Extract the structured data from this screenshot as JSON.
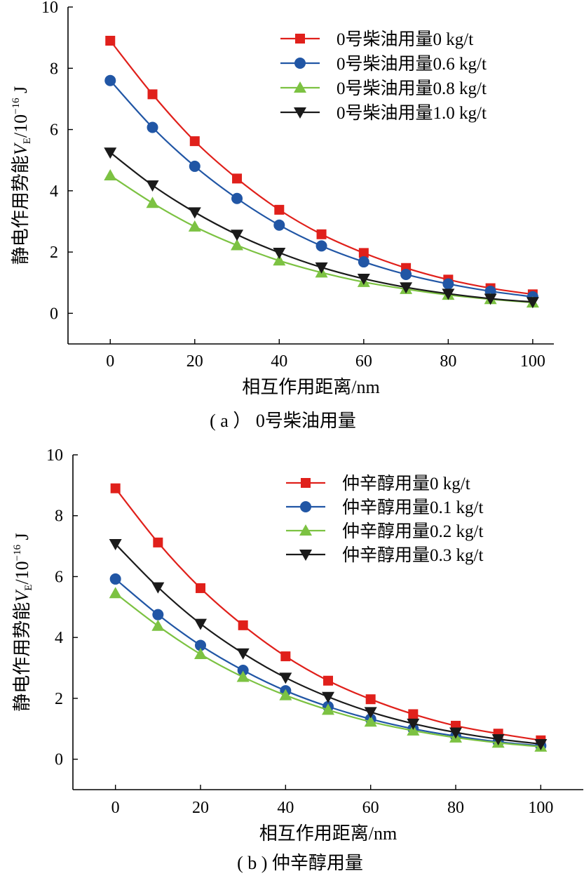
{
  "chart_data": [
    {
      "id": "a",
      "type": "line",
      "caption": "( a ）  0号柴油用量",
      "xlabel": "相互作用距离/nm",
      "ylabel_main": "静电作用势能",
      "ylabel_var": "V",
      "ylabel_sub": "E",
      "ylabel_unit_pre": "/10",
      "ylabel_exp": "−16",
      "ylabel_unit_post": " J",
      "xlim": [
        -10,
        105
      ],
      "ylim": [
        -1,
        10
      ],
      "xticks": [
        0,
        20,
        40,
        60,
        80,
        100
      ],
      "yticks": [
        0,
        2,
        4,
        6,
        8,
        10
      ],
      "grid": false,
      "legend_position": "top-right",
      "x": [
        0,
        10,
        20,
        30,
        40,
        50,
        60,
        70,
        80,
        90,
        100
      ],
      "series": [
        {
          "name": "0号柴油用量0 kg/t",
          "color": "#e0201b",
          "marker": "square",
          "values": [
            8.9,
            7.15,
            5.62,
            4.4,
            3.38,
            2.58,
            1.97,
            1.48,
            1.1,
            0.82,
            0.62
          ]
        },
        {
          "name": "0号柴油用量0.6 kg/t",
          "color": "#2156a5",
          "marker": "circle",
          "values": [
            7.6,
            6.07,
            4.8,
            3.75,
            2.88,
            2.2,
            1.68,
            1.27,
            0.96,
            0.72,
            0.54
          ]
        },
        {
          "name": "0号柴油用量0.8 kg/t",
          "color": "#7cc242",
          "marker": "triangle-up",
          "values": [
            4.5,
            3.6,
            2.83,
            2.22,
            1.72,
            1.33,
            1.02,
            0.79,
            0.6,
            0.46,
            0.35
          ]
        },
        {
          "name": "0号柴油用量1.0 kg/t",
          "color": "#1a1a1a",
          "marker": "triangle-down",
          "values": [
            5.25,
            4.18,
            3.3,
            2.57,
            1.98,
            1.5,
            1.13,
            0.85,
            0.64,
            0.48,
            0.37
          ]
        }
      ]
    },
    {
      "id": "b",
      "type": "line",
      "caption": "( b ) 仲辛醇用量",
      "xlabel": "相互作用距离/nm",
      "ylabel_main": "静电作用势能",
      "ylabel_var": "V",
      "ylabel_sub": "E",
      "ylabel_unit_pre": "/10",
      "ylabel_exp": "−16",
      "ylabel_unit_post": " J",
      "xlim": [
        -10,
        110
      ],
      "ylim": [
        -1,
        10
      ],
      "xticks": [
        0,
        20,
        40,
        60,
        80,
        100
      ],
      "yticks": [
        0,
        2,
        4,
        6,
        8,
        10
      ],
      "grid": false,
      "legend_position": "top-right",
      "x": [
        0,
        10,
        20,
        30,
        40,
        50,
        60,
        70,
        80,
        90,
        100
      ],
      "series": [
        {
          "name": "仲辛醇用量0 kg/t",
          "color": "#e0201b",
          "marker": "square",
          "values": [
            8.9,
            7.12,
            5.62,
            4.4,
            3.38,
            2.58,
            1.97,
            1.48,
            1.1,
            0.84,
            0.62
          ]
        },
        {
          "name": "仲辛醇用量0.1 kg/t",
          "color": "#2156a5",
          "marker": "circle",
          "values": [
            5.92,
            4.75,
            3.74,
            2.92,
            2.25,
            1.73,
            1.32,
            1.0,
            0.76,
            0.57,
            0.44
          ]
        },
        {
          "name": "仲辛醇用量0.2 kg/t",
          "color": "#7cc242",
          "marker": "triangle-up",
          "values": [
            5.45,
            4.38,
            3.45,
            2.7,
            2.1,
            1.62,
            1.23,
            0.94,
            0.71,
            0.54,
            0.41
          ]
        },
        {
          "name": "仲辛醇用量0.3 kg/t",
          "color": "#1a1a1a",
          "marker": "triangle-down",
          "values": [
            7.07,
            5.65,
            4.45,
            3.48,
            2.68,
            2.05,
            1.55,
            1.17,
            0.88,
            0.66,
            0.5
          ]
        }
      ]
    }
  ]
}
